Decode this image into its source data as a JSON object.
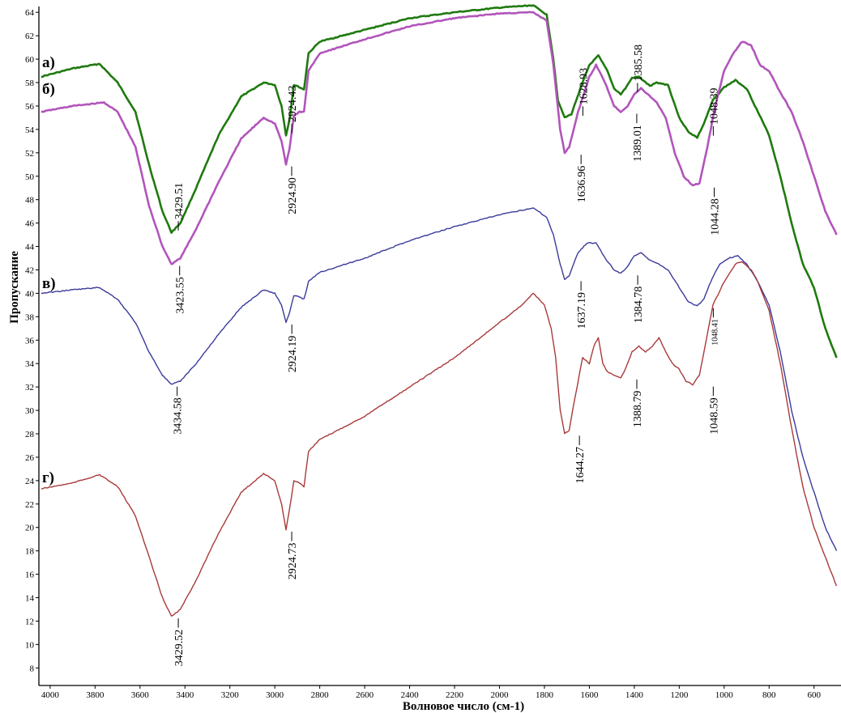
{
  "chart_data": {
    "type": "line",
    "title": "",
    "xlabel": "Волновое число (см-1)",
    "ylabel": "Пропускание",
    "xlim": [
      4050,
      480
    ],
    "ylim": [
      6.5,
      64.5
    ],
    "x_ticks": [
      4000,
      3800,
      3600,
      3400,
      3200,
      3000,
      2800,
      2600,
      2400,
      2200,
      2000,
      1800,
      1600,
      1400,
      1200,
      1000,
      800,
      600
    ],
    "y_ticks": [
      8,
      10,
      12,
      14,
      16,
      18,
      20,
      22,
      24,
      26,
      28,
      30,
      32,
      34,
      36,
      38,
      40,
      42,
      44,
      46,
      48,
      50,
      52,
      54,
      56,
      58,
      60,
      62,
      64
    ],
    "series": [
      {
        "name": "а)",
        "color": "#1f7a0f",
        "points": [
          [
            4040,
            58.5
          ],
          [
            3900,
            59.2
          ],
          [
            3780,
            59.6
          ],
          [
            3700,
            58.0
          ],
          [
            3620,
            55.5
          ],
          [
            3560,
            51.0
          ],
          [
            3500,
            47.0
          ],
          [
            3460,
            45.2
          ],
          [
            3420,
            46.0
          ],
          [
            3350,
            49.0
          ],
          [
            3250,
            53.5
          ],
          [
            3150,
            56.8
          ],
          [
            3050,
            58.0
          ],
          [
            3000,
            57.8
          ],
          [
            2970,
            56.0
          ],
          [
            2950,
            53.5
          ],
          [
            2935,
            54.8
          ],
          [
            2915,
            57.8
          ],
          [
            2890,
            57.6
          ],
          [
            2870,
            57.4
          ],
          [
            2850,
            60.5
          ],
          [
            2800,
            61.5
          ],
          [
            2600,
            62.5
          ],
          [
            2400,
            63.5
          ],
          [
            2200,
            64.0
          ],
          [
            2000,
            64.4
          ],
          [
            1850,
            64.6
          ],
          [
            1790,
            63.8
          ],
          [
            1760,
            60.0
          ],
          [
            1740,
            56.5
          ],
          [
            1710,
            55.0
          ],
          [
            1680,
            55.3
          ],
          [
            1640,
            57.5
          ],
          [
            1600,
            59.5
          ],
          [
            1560,
            60.3
          ],
          [
            1520,
            59.0
          ],
          [
            1490,
            57.5
          ],
          [
            1460,
            57.0
          ],
          [
            1440,
            57.5
          ],
          [
            1410,
            58.4
          ],
          [
            1380,
            58.5
          ],
          [
            1330,
            57.7
          ],
          [
            1300,
            58.0
          ],
          [
            1250,
            57.8
          ],
          [
            1200,
            55.0
          ],
          [
            1160,
            53.8
          ],
          [
            1120,
            53.3
          ],
          [
            1090,
            54.5
          ],
          [
            1050,
            56.5
          ],
          [
            1000,
            57.6
          ],
          [
            950,
            58.2
          ],
          [
            900,
            57.5
          ],
          [
            850,
            55.5
          ],
          [
            800,
            53.5
          ],
          [
            750,
            50.0
          ],
          [
            700,
            46.0
          ],
          [
            650,
            42.5
          ],
          [
            600,
            40.5
          ],
          [
            550,
            37.0
          ],
          [
            500,
            34.5
          ]
        ]
      },
      {
        "name": "б)",
        "color": "#b155bb",
        "points": [
          [
            4040,
            55.5
          ],
          [
            3900,
            56.0
          ],
          [
            3760,
            56.3
          ],
          [
            3700,
            55.5
          ],
          [
            3620,
            52.5
          ],
          [
            3560,
            47.5
          ],
          [
            3500,
            44.0
          ],
          [
            3460,
            42.5
          ],
          [
            3420,
            43.0
          ],
          [
            3350,
            45.5
          ],
          [
            3250,
            49.5
          ],
          [
            3150,
            53.2
          ],
          [
            3050,
            55.0
          ],
          [
            3000,
            54.5
          ],
          [
            2970,
            53.0
          ],
          [
            2950,
            51.0
          ],
          [
            2935,
            52.3
          ],
          [
            2915,
            55.2
          ],
          [
            2890,
            55.5
          ],
          [
            2870,
            55.5
          ],
          [
            2850,
            59.0
          ],
          [
            2800,
            60.5
          ],
          [
            2600,
            61.7
          ],
          [
            2400,
            62.8
          ],
          [
            2200,
            63.5
          ],
          [
            2000,
            63.9
          ],
          [
            1850,
            64.0
          ],
          [
            1790,
            63.3
          ],
          [
            1760,
            59.5
          ],
          [
            1730,
            54.0
          ],
          [
            1710,
            52.0
          ],
          [
            1690,
            52.5
          ],
          [
            1650,
            55.5
          ],
          [
            1600,
            58.5
          ],
          [
            1570,
            59.5
          ],
          [
            1530,
            58.0
          ],
          [
            1490,
            56.0
          ],
          [
            1460,
            55.5
          ],
          [
            1430,
            56.0
          ],
          [
            1400,
            57.0
          ],
          [
            1370,
            57.5
          ],
          [
            1340,
            57.0
          ],
          [
            1300,
            56.3
          ],
          [
            1260,
            55.0
          ],
          [
            1220,
            52.0
          ],
          [
            1180,
            50.0
          ],
          [
            1140,
            49.2
          ],
          [
            1110,
            49.4
          ],
          [
            1080,
            52.0
          ],
          [
            1040,
            56.0
          ],
          [
            1000,
            59.0
          ],
          [
            960,
            60.5
          ],
          [
            920,
            61.5
          ],
          [
            880,
            61.2
          ],
          [
            840,
            59.5
          ],
          [
            800,
            59.0
          ],
          [
            760,
            57.5
          ],
          [
            700,
            55.5
          ],
          [
            650,
            53.0
          ],
          [
            600,
            50.0
          ],
          [
            550,
            47.0
          ],
          [
            500,
            45.0
          ]
        ]
      },
      {
        "name": "в)",
        "color": "#3a3a9a",
        "points": [
          [
            4040,
            40.0
          ],
          [
            3900,
            40.3
          ],
          [
            3780,
            40.5
          ],
          [
            3700,
            39.5
          ],
          [
            3620,
            37.5
          ],
          [
            3560,
            35.0
          ],
          [
            3500,
            33.0
          ],
          [
            3460,
            32.2
          ],
          [
            3420,
            32.5
          ],
          [
            3350,
            34.0
          ],
          [
            3250,
            36.5
          ],
          [
            3150,
            38.8
          ],
          [
            3050,
            40.3
          ],
          [
            3000,
            40.0
          ],
          [
            2970,
            39.0
          ],
          [
            2950,
            37.5
          ],
          [
            2935,
            38.3
          ],
          [
            2915,
            39.8
          ],
          [
            2890,
            39.7
          ],
          [
            2870,
            39.5
          ],
          [
            2850,
            41.0
          ],
          [
            2800,
            41.8
          ],
          [
            2600,
            43.0
          ],
          [
            2400,
            44.5
          ],
          [
            2200,
            45.7
          ],
          [
            2000,
            46.7
          ],
          [
            1850,
            47.3
          ],
          [
            1790,
            46.5
          ],
          [
            1760,
            45.0
          ],
          [
            1730,
            42.5
          ],
          [
            1710,
            41.2
          ],
          [
            1690,
            41.5
          ],
          [
            1650,
            43.5
          ],
          [
            1610,
            44.3
          ],
          [
            1570,
            44.3
          ],
          [
            1530,
            43.0
          ],
          [
            1490,
            42.0
          ],
          [
            1460,
            41.7
          ],
          [
            1430,
            42.3
          ],
          [
            1400,
            43.2
          ],
          [
            1370,
            43.5
          ],
          [
            1330,
            42.8
          ],
          [
            1290,
            42.5
          ],
          [
            1250,
            42.0
          ],
          [
            1200,
            40.5
          ],
          [
            1160,
            39.3
          ],
          [
            1120,
            38.9
          ],
          [
            1090,
            39.5
          ],
          [
            1060,
            41.0
          ],
          [
            1020,
            42.5
          ],
          [
            980,
            43.0
          ],
          [
            940,
            43.2
          ],
          [
            900,
            42.5
          ],
          [
            850,
            41.0
          ],
          [
            800,
            39.0
          ],
          [
            750,
            35.0
          ],
          [
            700,
            30.0
          ],
          [
            650,
            26.0
          ],
          [
            600,
            23.0
          ],
          [
            550,
            20.0
          ],
          [
            500,
            18.0
          ]
        ]
      },
      {
        "name": "г)",
        "color": "#a83a3a",
        "points": [
          [
            4040,
            23.3
          ],
          [
            3900,
            23.8
          ],
          [
            3780,
            24.5
          ],
          [
            3700,
            23.5
          ],
          [
            3620,
            21.0
          ],
          [
            3560,
            17.5
          ],
          [
            3500,
            14.0
          ],
          [
            3460,
            12.4
          ],
          [
            3420,
            13.0
          ],
          [
            3350,
            15.5
          ],
          [
            3250,
            19.5
          ],
          [
            3150,
            23.0
          ],
          [
            3050,
            24.6
          ],
          [
            3000,
            24.0
          ],
          [
            2970,
            22.0
          ],
          [
            2950,
            19.8
          ],
          [
            2935,
            21.5
          ],
          [
            2915,
            24.0
          ],
          [
            2890,
            23.8
          ],
          [
            2870,
            23.5
          ],
          [
            2850,
            26.5
          ],
          [
            2800,
            27.5
          ],
          [
            2600,
            29.5
          ],
          [
            2400,
            32.0
          ],
          [
            2200,
            34.5
          ],
          [
            2000,
            37.5
          ],
          [
            1900,
            39.0
          ],
          [
            1850,
            40.0
          ],
          [
            1800,
            39.0
          ],
          [
            1770,
            37.0
          ],
          [
            1750,
            34.5
          ],
          [
            1730,
            30.0
          ],
          [
            1710,
            28.0
          ],
          [
            1690,
            28.3
          ],
          [
            1660,
            31.5
          ],
          [
            1630,
            34.5
          ],
          [
            1600,
            34.0
          ],
          [
            1580,
            35.5
          ],
          [
            1560,
            36.2
          ],
          [
            1540,
            34.0
          ],
          [
            1520,
            33.3
          ],
          [
            1490,
            33.0
          ],
          [
            1460,
            32.8
          ],
          [
            1440,
            33.5
          ],
          [
            1410,
            35.0
          ],
          [
            1380,
            35.5
          ],
          [
            1350,
            35.0
          ],
          [
            1320,
            35.5
          ],
          [
            1290,
            36.2
          ],
          [
            1260,
            35.0
          ],
          [
            1230,
            34.0
          ],
          [
            1200,
            33.5
          ],
          [
            1170,
            32.5
          ],
          [
            1140,
            32.2
          ],
          [
            1110,
            33.0
          ],
          [
            1080,
            36.0
          ],
          [
            1050,
            39.0
          ],
          [
            1000,
            41.0
          ],
          [
            950,
            42.5
          ],
          [
            920,
            42.7
          ],
          [
            880,
            42.0
          ],
          [
            850,
            41.0
          ],
          [
            800,
            38.5
          ],
          [
            750,
            34.0
          ],
          [
            700,
            28.5
          ],
          [
            650,
            23.5
          ],
          [
            600,
            20.0
          ],
          [
            550,
            17.5
          ],
          [
            500,
            15.0
          ]
        ]
      }
    ],
    "annotations": [
      {
        "text": "2924.43",
        "series": "а)",
        "x": 2924.43,
        "y": 53.5,
        "side": "above"
      },
      {
        "text": "1628.93",
        "series": "а)",
        "x": 1628.93,
        "y": 55.0,
        "side": "above"
      },
      {
        "text": "1385.58",
        "series": "а)",
        "x": 1385.58,
        "y": 57.0,
        "side": "above"
      },
      {
        "text": "1048.39",
        "series": "а)",
        "x": 1048.39,
        "y": 53.3,
        "side": "above"
      },
      {
        "text": "3429.51",
        "series": "а)",
        "x": 3429.51,
        "y": 45.2,
        "side": "above"
      },
      {
        "text": "3423.55",
        "series": "б)",
        "x": 3423.55,
        "y": 42.5,
        "side": "below"
      },
      {
        "text": "2924.90",
        "series": "б)",
        "x": 2924.9,
        "y": 51.0,
        "side": "below"
      },
      {
        "text": "1636.96",
        "series": "б)",
        "x": 1636.96,
        "y": 52.0,
        "side": "below"
      },
      {
        "text": "1389.01",
        "series": "б)",
        "x": 1389.01,
        "y": 55.5,
        "side": "below"
      },
      {
        "text": "1044.28",
        "series": "б)",
        "x": 1044.28,
        "y": 49.2,
        "side": "below"
      },
      {
        "text": "3434.58",
        "series": "в)",
        "x": 3434.58,
        "y": 32.2,
        "side": "below"
      },
      {
        "text": "2924.19",
        "series": "в)",
        "x": 2924.19,
        "y": 37.5,
        "side": "below"
      },
      {
        "text": "1637.19",
        "series": "в)",
        "x": 1637.19,
        "y": 41.2,
        "side": "below"
      },
      {
        "text": "1384.78",
        "series": "в)",
        "x": 1384.78,
        "y": 41.7,
        "side": "below"
      },
      {
        "text": "1048.41",
        "series": "в)",
        "x": 1048.41,
        "y": 38.9,
        "side": "below",
        "small": true
      },
      {
        "text": "3429.52",
        "series": "г)",
        "x": 3429.52,
        "y": 12.4,
        "side": "below"
      },
      {
        "text": "2924.73",
        "series": "г)",
        "x": 2924.73,
        "y": 19.8,
        "side": "below"
      },
      {
        "text": "1644.27",
        "series": "г)",
        "x": 1644.27,
        "y": 28.0,
        "side": "below"
      },
      {
        "text": "1388.79",
        "series": "г)",
        "x": 1388.79,
        "y": 32.8,
        "side": "below"
      },
      {
        "text": "1048.59",
        "series": "г)",
        "x": 1048.59,
        "y": 32.2,
        "side": "below"
      }
    ],
    "series_labels": [
      {
        "text": "а)",
        "series": "а)"
      },
      {
        "text": "б)",
        "series": "б)"
      },
      {
        "text": "в)",
        "series": "в)"
      },
      {
        "text": "г)",
        "series": "г)"
      }
    ],
    "grid": false,
    "legend": "none"
  }
}
